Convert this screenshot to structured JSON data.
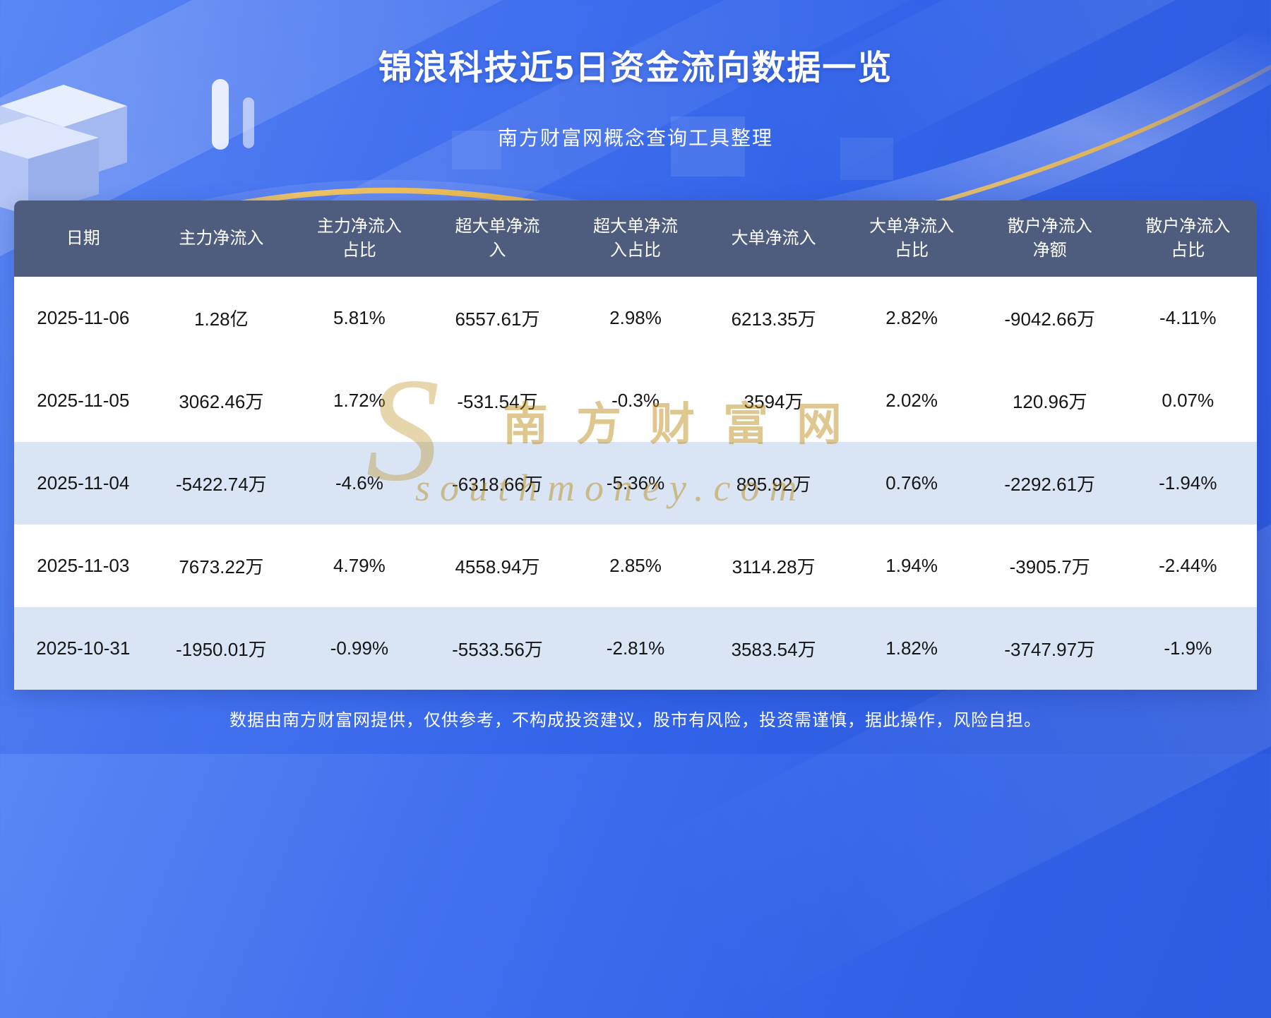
{
  "page": {
    "title": "锦浪科技近5日资金流向数据一览",
    "subtitle": "南方财富网概念查询工具整理",
    "footer": "数据由南方财富网提供，仅供参考，不构成投资建议，股市有风险，投资需谨慎，据此操作，风险自担。"
  },
  "watermark": {
    "glyph": "S",
    "line1": "南方财富网",
    "line2": "southmoney.com"
  },
  "colors": {
    "header_bg": "#4e5d7e",
    "row_white_bg": "#ffffff",
    "row_blue_bg": "#d9e4f5",
    "watermark_gold": "#b8860b",
    "accent_gold": "#edbd55",
    "background_blue": "#3263e8"
  },
  "chart_data": {
    "type": "table",
    "title": "锦浪科技近5日资金流向数据一览",
    "columns": [
      "日期",
      "主力净流入",
      "主力净流入占比",
      "超大单净流入",
      "超大单净流入占比",
      "大单净流入",
      "大单净流入占比",
      "散户净流入净额",
      "散户净流入占比"
    ],
    "rows": [
      [
        "2025-11-06",
        "1.28亿",
        "5.81%",
        "6557.61万",
        "2.98%",
        "6213.35万",
        "2.82%",
        "-9042.66万",
        "-4.11%"
      ],
      [
        "2025-11-05",
        "3062.46万",
        "1.72%",
        "-531.54万",
        "-0.3%",
        "3594万",
        "2.02%",
        "120.96万",
        "0.07%"
      ],
      [
        "2025-11-04",
        "-5422.74万",
        "-4.6%",
        "-6318.66万",
        "-5.36%",
        "895.92万",
        "0.76%",
        "-2292.61万",
        "-1.94%"
      ],
      [
        "2025-11-03",
        "7673.22万",
        "4.79%",
        "4558.94万",
        "2.85%",
        "3114.28万",
        "1.94%",
        "-3905.7万",
        "-2.44%"
      ],
      [
        "2025-10-31",
        "-1950.01万",
        "-0.99%",
        "-5533.56万",
        "-2.81%",
        "3583.54万",
        "1.82%",
        "-3747.97万",
        "-1.9%"
      ]
    ]
  }
}
